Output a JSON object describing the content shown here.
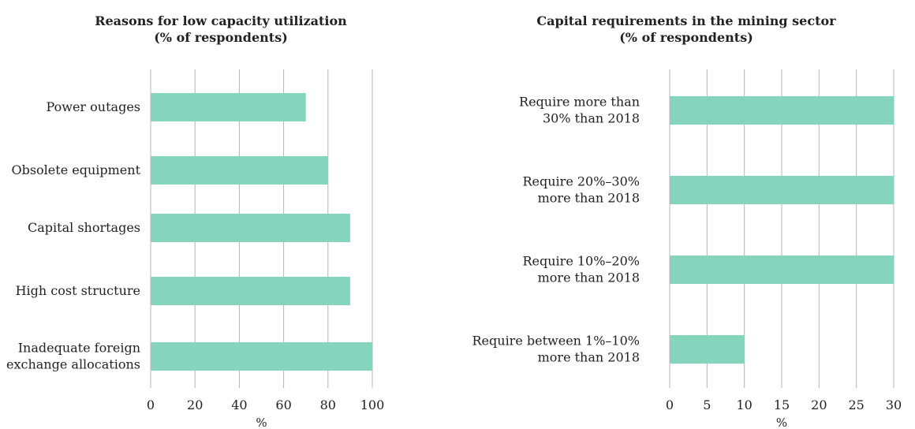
{
  "chart_data": [
    {
      "type": "bar",
      "orientation": "horizontal",
      "title": "Reasons for low capacity utilization",
      "subtitle": "(% of respondents)",
      "xlabel": "%",
      "ylabel": "",
      "xlim": [
        0,
        100
      ],
      "xticks": [
        0,
        20,
        40,
        60,
        80,
        100
      ],
      "grid": true,
      "categories": [
        [
          "Power outages"
        ],
        [
          "Obsolete equipment"
        ],
        [
          "Capital shortages"
        ],
        [
          "High cost structure"
        ],
        [
          "Inadequate foreign",
          "exchange allocations"
        ]
      ],
      "values": [
        70,
        80,
        90,
        90,
        100
      ]
    },
    {
      "type": "bar",
      "orientation": "horizontal",
      "title": "Capital requirements in the mining sector",
      "subtitle": "(% of respondents)",
      "xlabel": "%",
      "ylabel": "",
      "xlim": [
        0,
        30
      ],
      "xticks": [
        0,
        5,
        10,
        15,
        20,
        25,
        30
      ],
      "grid": true,
      "categories": [
        [
          "Require more than",
          "30% than 2018"
        ],
        [
          "Require 20%–30%",
          "more than 2018"
        ],
        [
          "Require 10%–20%",
          "more than 2018"
        ],
        [
          "Require between 1%–10%",
          "more than 2018"
        ]
      ],
      "values": [
        30,
        30,
        30,
        10
      ]
    }
  ],
  "colors": {
    "bar": "#85d5bc",
    "grid": "#b5b5b5"
  }
}
